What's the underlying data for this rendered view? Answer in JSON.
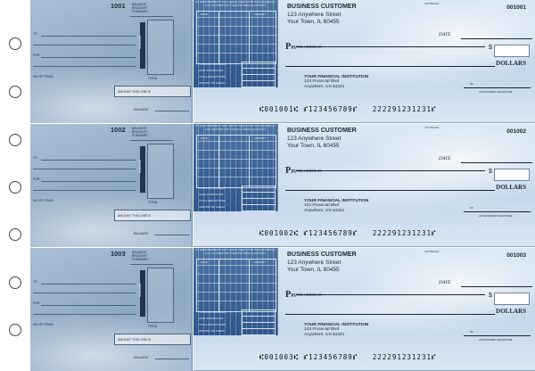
{
  "checks": [
    {
      "number": "1001",
      "check_number": "001001",
      "micr": "⑆001001⑆ ⑈123456789⑈   222291231231⑈"
    },
    {
      "number": "1002",
      "check_number": "001002",
      "micr": "⑆001002⑆ ⑈123456789⑈   222291231231⑈"
    },
    {
      "number": "1003",
      "check_number": "001003",
      "micr": "⑆001003⑆ ⑈123456789⑈   222291231231⑈"
    }
  ],
  "stub": {
    "balance_brought_forward": "BALANCE BROUGHT FORWARD",
    "deposits": "DEPOSITS",
    "to": "TO",
    "for": "FOR",
    "total": "TOTAL",
    "no_of_items": "NO OF ITEMS",
    "amount_this_check": "AMOUNT THIS CHECK",
    "balance": "BALANCE"
  },
  "deposit_strip": {
    "header": "BY ENDORSEMENT THIS CHECK WHEN PAID IS ACCEPTED IN FULL PAYMENT OF THE FOLLOWING ACCOUNT",
    "date": "DATE",
    "amount": "AMOUNT",
    "total_of_invoices": "TOTAL OF INVOICES",
    "less_percent_discount": "LESS % DISCOUNT",
    "total_deductions": "TOTAL DEDUCTIONS",
    "amount_of_check": "AMOUNT OF CHECK"
  },
  "customer": {
    "name": "BUSINESS CUSTOMER",
    "street": "123 Anywhere Street",
    "city": "Your Town, IL 60455"
  },
  "bank": {
    "name": "YOUR FINANCIAL INSTITUTION",
    "street": "123 Financial Blvd",
    "city": "Anywhere, US 54321"
  },
  "labels": {
    "tiny_code": "00-6789/1234",
    "pay_p": "P",
    "pay_rest": "AY",
    "to_the_order_of": "TO THE ORDER OF",
    "date": "DATE",
    "dollar_sign": "$",
    "dollars": "DOLLARS",
    "mp": "MP",
    "authorized_signature": "AUTHORIZED SIGNATURE"
  }
}
